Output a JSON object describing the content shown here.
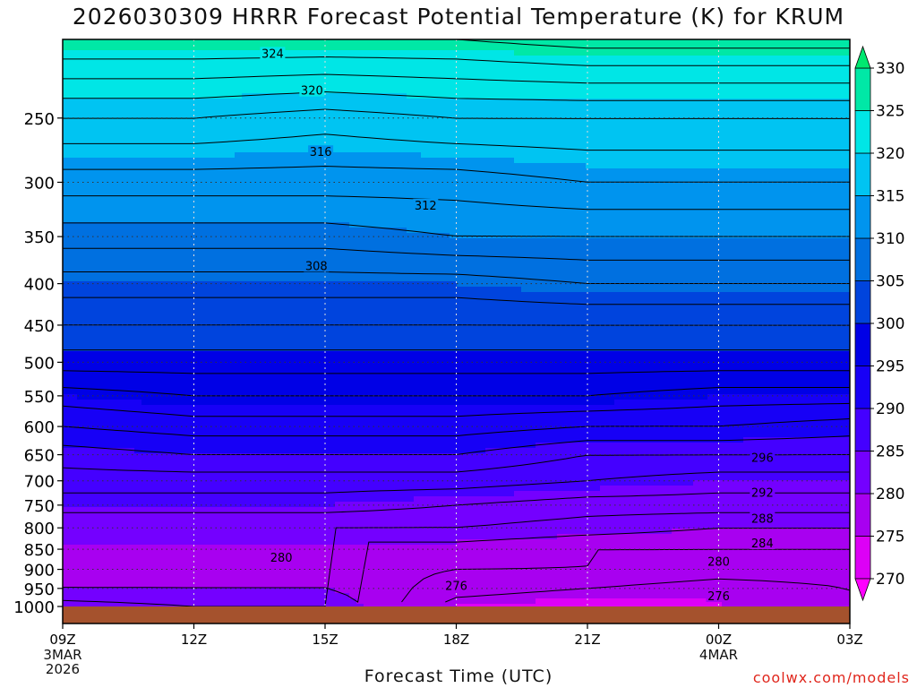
{
  "title": "2026030309 HRRR Forecast Potential Temperature (K) for KRUM",
  "credit": "coolwx.com/models",
  "chart_data": {
    "type": "heatmap",
    "title": "2026030309 HRRR Forecast Potential Temperature (K) for KRUM",
    "xlabel": "Forecast Time (UTC)",
    "ylabel": "",
    "x_hours": [
      9,
      10,
      11,
      12,
      13,
      14,
      15,
      16,
      17,
      18,
      19,
      20,
      21,
      22,
      23,
      24,
      25,
      26,
      27
    ],
    "x_ticks": [
      {
        "h": 9,
        "label": "09Z"
      },
      {
        "h": 12,
        "label": "12Z"
      },
      {
        "h": 15,
        "label": "15Z"
      },
      {
        "h": 18,
        "label": "18Z"
      },
      {
        "h": 21,
        "label": "21Z"
      },
      {
        "h": 24,
        "label": "00Z"
      },
      {
        "h": 27,
        "label": "03Z"
      }
    ],
    "date_labels": [
      {
        "h": 9,
        "lines": [
          "3MAR",
          "2026"
        ]
      },
      {
        "h": 24,
        "lines": [
          "4MAR"
        ]
      }
    ],
    "y_axis": {
      "scale": "log-pressure",
      "unit": "hPa",
      "range": [
        1000,
        200
      ],
      "ticks": [
        250,
        300,
        350,
        400,
        450,
        500,
        550,
        600,
        650,
        700,
        750,
        800,
        850,
        900,
        950,
        1000
      ]
    },
    "colorbar": {
      "levels": [
        270,
        275,
        280,
        285,
        290,
        295,
        300,
        305,
        310,
        315,
        320,
        325,
        330
      ],
      "colors": [
        "#ff00ff",
        "#dd00f6",
        "#a800f0",
        "#7400ff",
        "#4400ff",
        "#1700f6",
        "#0000e6",
        "#0044dd",
        "#0070e0",
        "#0094ee",
        "#00c4f2",
        "#00e6e6",
        "#00e8a6",
        "#00e870"
      ]
    },
    "pressure_levels": [
      1000,
      950,
      900,
      850,
      800,
      750,
      700,
      650,
      600,
      550,
      500,
      450,
      400,
      350,
      300,
      250,
      200
    ],
    "theta_profiles": [
      {
        "h": 9,
        "theta": [
          283,
          280,
          279,
          279,
          282,
          285,
          287,
          289,
          292,
          295,
          299,
          302,
          305,
          309,
          313,
          318,
          326
        ]
      },
      {
        "h": 12,
        "theta": [
          282,
          280,
          279,
          279,
          282,
          285,
          287,
          290,
          293,
          296,
          299,
          302,
          305,
          309,
          313,
          318,
          326
        ]
      },
      {
        "h": 15,
        "theta": [
          282,
          280,
          279,
          279,
          282,
          285,
          287,
          290,
          293,
          296,
          299,
          302,
          305,
          309,
          313,
          317,
          326
        ]
      },
      {
        "h": 18,
        "theta": [
          275,
          277,
          278,
          279,
          282,
          284,
          287,
          290,
          293,
          296,
          299,
          302,
          305,
          310,
          313,
          318,
          326
        ]
      },
      {
        "h": 21,
        "theta": [
          274,
          276,
          278,
          278,
          281,
          283,
          286,
          288,
          292,
          296,
          299,
          302,
          306,
          310,
          314,
          318,
          327
        ]
      },
      {
        "h": 24,
        "theta": [
          275,
          275,
          277,
          278,
          280,
          283,
          285,
          288,
          292,
          295,
          299,
          302,
          306,
          310,
          314,
          318,
          327
        ]
      },
      {
        "h": 27,
        "theta": [
          276,
          276,
          277,
          278,
          280,
          283,
          285,
          288,
          291,
          295,
          299,
          302,
          306,
          310,
          314,
          318,
          327
        ]
      }
    ],
    "contour_labels": [
      {
        "value": "324",
        "h": 13.8,
        "p": 208
      },
      {
        "value": "320",
        "h": 14.7,
        "p": 231
      },
      {
        "value": "316",
        "h": 14.9,
        "p": 275
      },
      {
        "value": "312",
        "h": 17.3,
        "p": 320
      },
      {
        "value": "308",
        "h": 14.8,
        "p": 380
      },
      {
        "value": "296",
        "h": 25.0,
        "p": 655
      },
      {
        "value": "292",
        "h": 25.0,
        "p": 723
      },
      {
        "value": "288",
        "h": 25.0,
        "p": 778
      },
      {
        "value": "284",
        "h": 25.0,
        "p": 835
      },
      {
        "value": "280",
        "h": 14.0,
        "p": 870
      },
      {
        "value": "280",
        "h": 24.0,
        "p": 880
      },
      {
        "value": "276",
        "h": 18.0,
        "p": 942
      },
      {
        "value": "276",
        "h": 24.0,
        "p": 970
      }
    ]
  }
}
